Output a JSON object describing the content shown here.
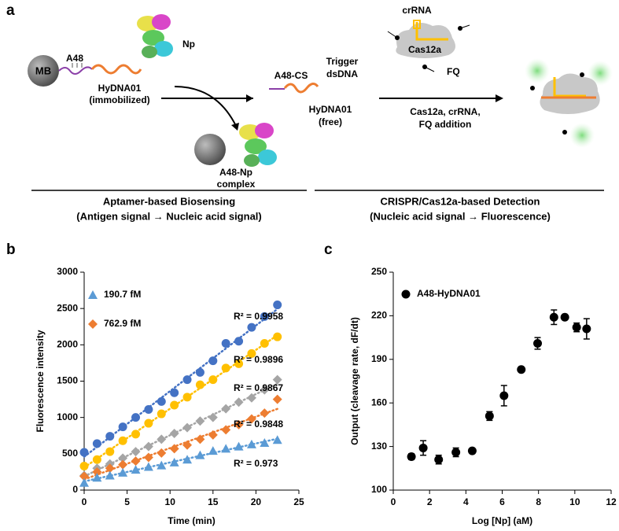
{
  "panels": [
    "a",
    "b",
    "c"
  ],
  "diagram": {
    "mb": "MB",
    "a48": "A48",
    "np": "Np",
    "hydna01_immobilized": [
      "HyDNA01",
      "(immobilized)"
    ],
    "complex": [
      "A48-Np",
      "complex"
    ],
    "a48_cs": "A48-CS",
    "trigger": [
      "Trigger",
      "dsDNA"
    ],
    "hydna01_free": [
      "HyDNA01",
      "(free)"
    ],
    "crrna": "crRNA",
    "cas12a": "Cas12a",
    "fq": "FQ",
    "addition": [
      "Cas12a, crRNA,",
      "FQ addition"
    ],
    "left_caption": [
      "Aptamer-based Biosensing",
      "(Antigen signal → Nucleic acid signal)"
    ],
    "right_caption": [
      "CRISPR/Cas12a-based Detection",
      "(Nucleic acid signal → Fluorescence)"
    ]
  },
  "chart_data": [
    {
      "type": "scatter",
      "xlabel": "Time (min)",
      "ylabel": "Fluorescence intensity",
      "xlim": [
        0,
        25
      ],
      "xticks": [
        0,
        5,
        10,
        15,
        20,
        25
      ],
      "ylim": [
        0,
        3000
      ],
      "yticks": [
        0,
        500,
        1000,
        1500,
        2000,
        2500,
        3000
      ],
      "trendline": true,
      "x": [
        0,
        1.5,
        3,
        4.5,
        6,
        7.5,
        9,
        10.5,
        12,
        13.5,
        15,
        16.5,
        18,
        19.5,
        21,
        22.5
      ],
      "series": [
        {
          "color": "#4472c4",
          "marker": "circle",
          "label": "R² = 0.9958",
          "label_color": "#808080",
          "values": [
            520,
            640,
            740,
            870,
            1000,
            1110,
            1220,
            1340,
            1520,
            1620,
            1780,
            2020,
            2050,
            2240,
            2390,
            2550
          ]
        },
        {
          "color": "#ffc000",
          "marker": "circle",
          "label": "R² = 0.9896",
          "label_color": "#000000",
          "values": [
            330,
            420,
            530,
            680,
            770,
            920,
            1050,
            1170,
            1280,
            1450,
            1520,
            1680,
            1740,
            1880,
            2020,
            2110
          ]
        },
        {
          "color": "#a5a5a5",
          "marker": "diamond",
          "label": "R² = 0.9867",
          "label_color": "#000000",
          "values": [
            200,
            300,
            360,
            440,
            530,
            600,
            700,
            780,
            860,
            950,
            1000,
            1120,
            1210,
            1270,
            1380,
            1520
          ]
        },
        {
          "name": "762.9 fM",
          "color": "#ed7d31",
          "marker": "diamond",
          "label": "R² = 0.9848",
          "label_color": "#000000",
          "values": [
            190,
            250,
            300,
            350,
            400,
            450,
            510,
            570,
            620,
            700,
            760,
            830,
            900,
            980,
            1060,
            1250
          ]
        },
        {
          "name": "190.7 fM",
          "color": "#5b9bd5",
          "marker": "triangle",
          "label": "R² = 0.973",
          "label_color": "#000000",
          "values": [
            100,
            170,
            200,
            240,
            280,
            320,
            340,
            380,
            420,
            480,
            540,
            570,
            600,
            630,
            650,
            690
          ]
        }
      ]
    },
    {
      "type": "scatter",
      "xlabel": "Log [Np] (aM)",
      "ylabel": "Output (cleavage rate, dF/dt)",
      "xlim": [
        0,
        12
      ],
      "xticks": [
        0,
        2,
        4,
        6,
        8,
        10,
        12
      ],
      "ylim": [
        100,
        250
      ],
      "yticks": [
        100,
        130,
        160,
        190,
        220,
        250
      ],
      "trendline": false,
      "series": [
        {
          "name": "A48-HyDNA01",
          "color": "#000000",
          "marker": "circle",
          "x": [
            1.0,
            1.65,
            2.5,
            3.45,
            4.35,
            5.3,
            6.1,
            7.05,
            7.95,
            8.85,
            9.45,
            10.1,
            10.65
          ],
          "values": [
            123,
            129,
            121,
            126,
            127,
            151,
            165,
            183,
            201,
            219,
            219,
            212,
            211
          ],
          "errors": [
            2,
            5,
            3,
            3,
            1,
            3,
            7,
            1,
            4,
            5,
            1,
            3,
            7
          ]
        }
      ]
    }
  ]
}
